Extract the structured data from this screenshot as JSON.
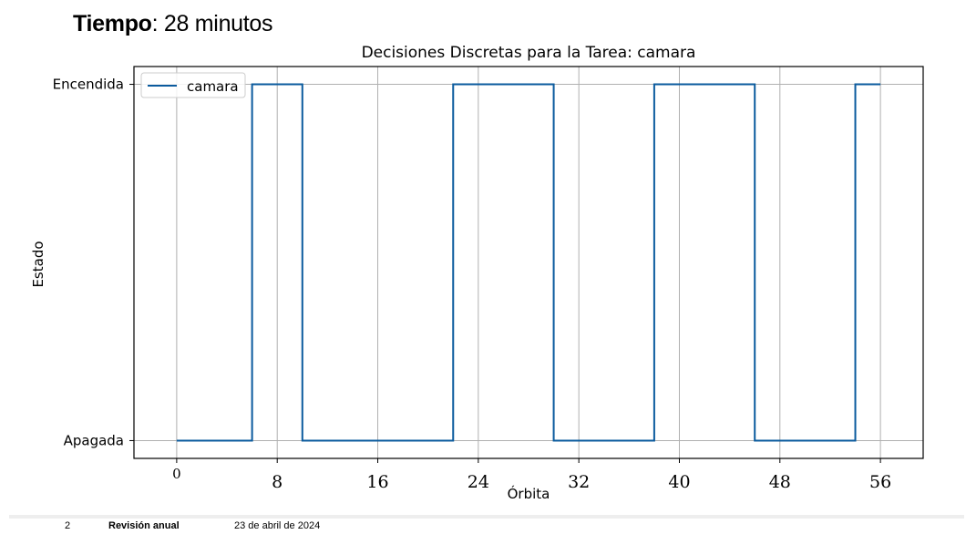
{
  "header": {
    "label_strong": "Tiempo",
    "label_rest": ": 28 minutos"
  },
  "chart_data": {
    "type": "line",
    "step": "post",
    "title": "Decisiones Discretas para la Tarea: camara",
    "xlabel": "Órbita",
    "ylabel": "Estado",
    "xlim": [
      -3.4,
      59.4
    ],
    "ylim": [
      -0.05,
      1.05
    ],
    "x_ticks": [
      0,
      8,
      16,
      24,
      32,
      40,
      48,
      56
    ],
    "x_tick_labels": [
      "0",
      "8",
      "16",
      "24",
      "32",
      "40",
      "48",
      "56"
    ],
    "y_ticks": [
      0,
      1
    ],
    "y_tick_labels": [
      "Apagada",
      "Encendida"
    ],
    "grid": true,
    "legend": {
      "position": "top-left",
      "entries": [
        "camara"
      ]
    },
    "series": [
      {
        "name": "camara",
        "color": "#0b5b9e",
        "x": [
          0,
          6,
          10,
          22,
          30,
          38,
          46,
          54,
          56
        ],
        "y": [
          0,
          1,
          0,
          1,
          0,
          1,
          0,
          1,
          1
        ]
      }
    ]
  },
  "footer": {
    "page": "2",
    "title": "Revisión anual",
    "date": "23 de abril de 2024"
  }
}
